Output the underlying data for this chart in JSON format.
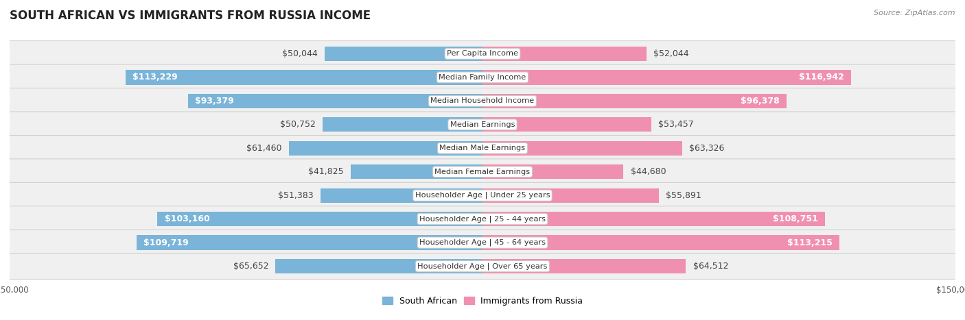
{
  "title": "SOUTH AFRICAN VS IMMIGRANTS FROM RUSSIA INCOME",
  "source": "Source: ZipAtlas.com",
  "categories": [
    "Per Capita Income",
    "Median Family Income",
    "Median Household Income",
    "Median Earnings",
    "Median Male Earnings",
    "Median Female Earnings",
    "Householder Age | Under 25 years",
    "Householder Age | 25 - 44 years",
    "Householder Age | 45 - 64 years",
    "Householder Age | Over 65 years"
  ],
  "south_african": [
    50044,
    113229,
    93379,
    50752,
    61460,
    41825,
    51383,
    103160,
    109719,
    65652
  ],
  "russia": [
    52044,
    116942,
    96378,
    53457,
    63326,
    44680,
    55891,
    108751,
    113215,
    64512
  ],
  "south_african_labels": [
    "$50,044",
    "$113,229",
    "$93,379",
    "$50,752",
    "$61,460",
    "$41,825",
    "$51,383",
    "$103,160",
    "$109,719",
    "$65,652"
  ],
  "russia_labels": [
    "$52,044",
    "$116,942",
    "$96,378",
    "$53,457",
    "$63,326",
    "$44,680",
    "$55,891",
    "$108,751",
    "$113,215",
    "$64,512"
  ],
  "max_value": 150000,
  "color_sa": "#7ab4d8",
  "color_ru": "#f090b0",
  "bg_color": "#ffffff",
  "row_bg": "#f0f0f0",
  "row_border": "#cccccc",
  "label_fontsize": 9.0,
  "title_fontsize": 12,
  "source_fontsize": 8,
  "legend_sa": "South African",
  "legend_ru": "Immigrants from Russia",
  "sa_label_threshold": 0.6,
  "ru_label_threshold": 0.6
}
